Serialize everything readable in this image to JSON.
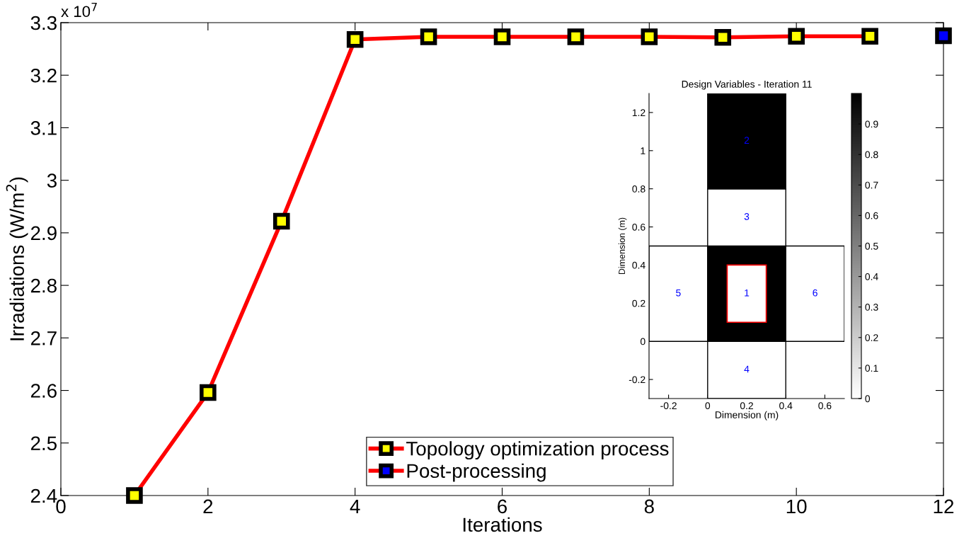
{
  "chart_data": [
    {
      "type": "line",
      "xlabel": "Iterations",
      "ylabel": "Irradiations (W/m$^{2}$)",
      "xlim": [
        0,
        12
      ],
      "xticks": [
        0,
        2,
        4,
        6,
        8,
        10,
        12
      ],
      "ylim": [
        2.4,
        3.3
      ],
      "yticks": [
        2.4,
        2.5,
        2.6,
        2.7,
        2.8,
        2.9,
        3,
        3.1,
        3.2,
        3.3
      ],
      "annotations": [
        "x 10$^{7}$"
      ],
      "marker": "square",
      "line_style": "solid",
      "legend": "bottom",
      "grid": false,
      "series": [
        {
          "name": "Topology optimization process",
          "color": "#ff0000",
          "colors": [
            "#ffff00",
            "#ffff00",
            "#ffff00",
            "#ffff00",
            "#ffff00",
            "#ffff00",
            "#ffff00",
            "#ffff00",
            "#ffff00",
            "#ffff00",
            "#ffff00"
          ],
          "x": [
            1,
            2,
            3,
            4,
            5,
            6,
            7,
            8,
            9,
            10,
            11
          ],
          "values": [
            2.4,
            2.596,
            2.922,
            3.268,
            3.273,
            3.273,
            3.273,
            3.273,
            3.272,
            3.274,
            3.274
          ]
        },
        {
          "name": "Post-processing",
          "color": "#ff0000",
          "colors": [
            "#0000ff"
          ],
          "x": [
            12
          ],
          "values": [
            3.275
          ]
        }
      ]
    },
    {
      "type": "bar",
      "title": "Design Variables - Iteration 11",
      "xlabel": "Dimension (m)",
      "ylabel": "Dimension (m)",
      "series": [
        {
          "x": [
            -0.15,
            0.2,
            0.55
          ],
          "base": [
            0,
            0,
            0
          ],
          "values": [
            0.5,
            0.5,
            0.5
          ],
          "colors": [
            "#ffffff",
            "#000000",
            "#ffffff"
          ]
        },
        {
          "x": [
            0.2
          ],
          "base": [
            -0.3
          ],
          "values": [
            0.3
          ],
          "colors": [
            "#ffffff"
          ]
        },
        {
          "x": [
            0.2
          ],
          "base": [
            0.5
          ],
          "values": [
            0.3
          ],
          "colors": [
            "#ffffff"
          ]
        },
        {
          "x": [
            0.2
          ],
          "base": [
            0.8
          ],
          "values": [
            0.5
          ],
          "colors": [
            "#000000"
          ]
        }
      ],
      "annotations": [
        "5",
        "1",
        "6",
        "4",
        "3",
        "2"
      ],
      "xlim": [
        -0.3,
        0.7
      ],
      "xticks": [
        -0.2,
        0,
        0.2,
        0.4,
        0.6
      ],
      "ylim": [
        -0.3,
        1.3
      ],
      "yticks": [
        -0.2,
        0,
        0.2,
        0.4,
        0.6,
        0.8,
        1,
        1.2
      ],
      "clim": [
        0,
        1
      ],
      "cticks": [
        0,
        0.1,
        0.2,
        0.3,
        0.4,
        0.5,
        0.6,
        0.7,
        0.8,
        0.9
      ]
    }
  ]
}
